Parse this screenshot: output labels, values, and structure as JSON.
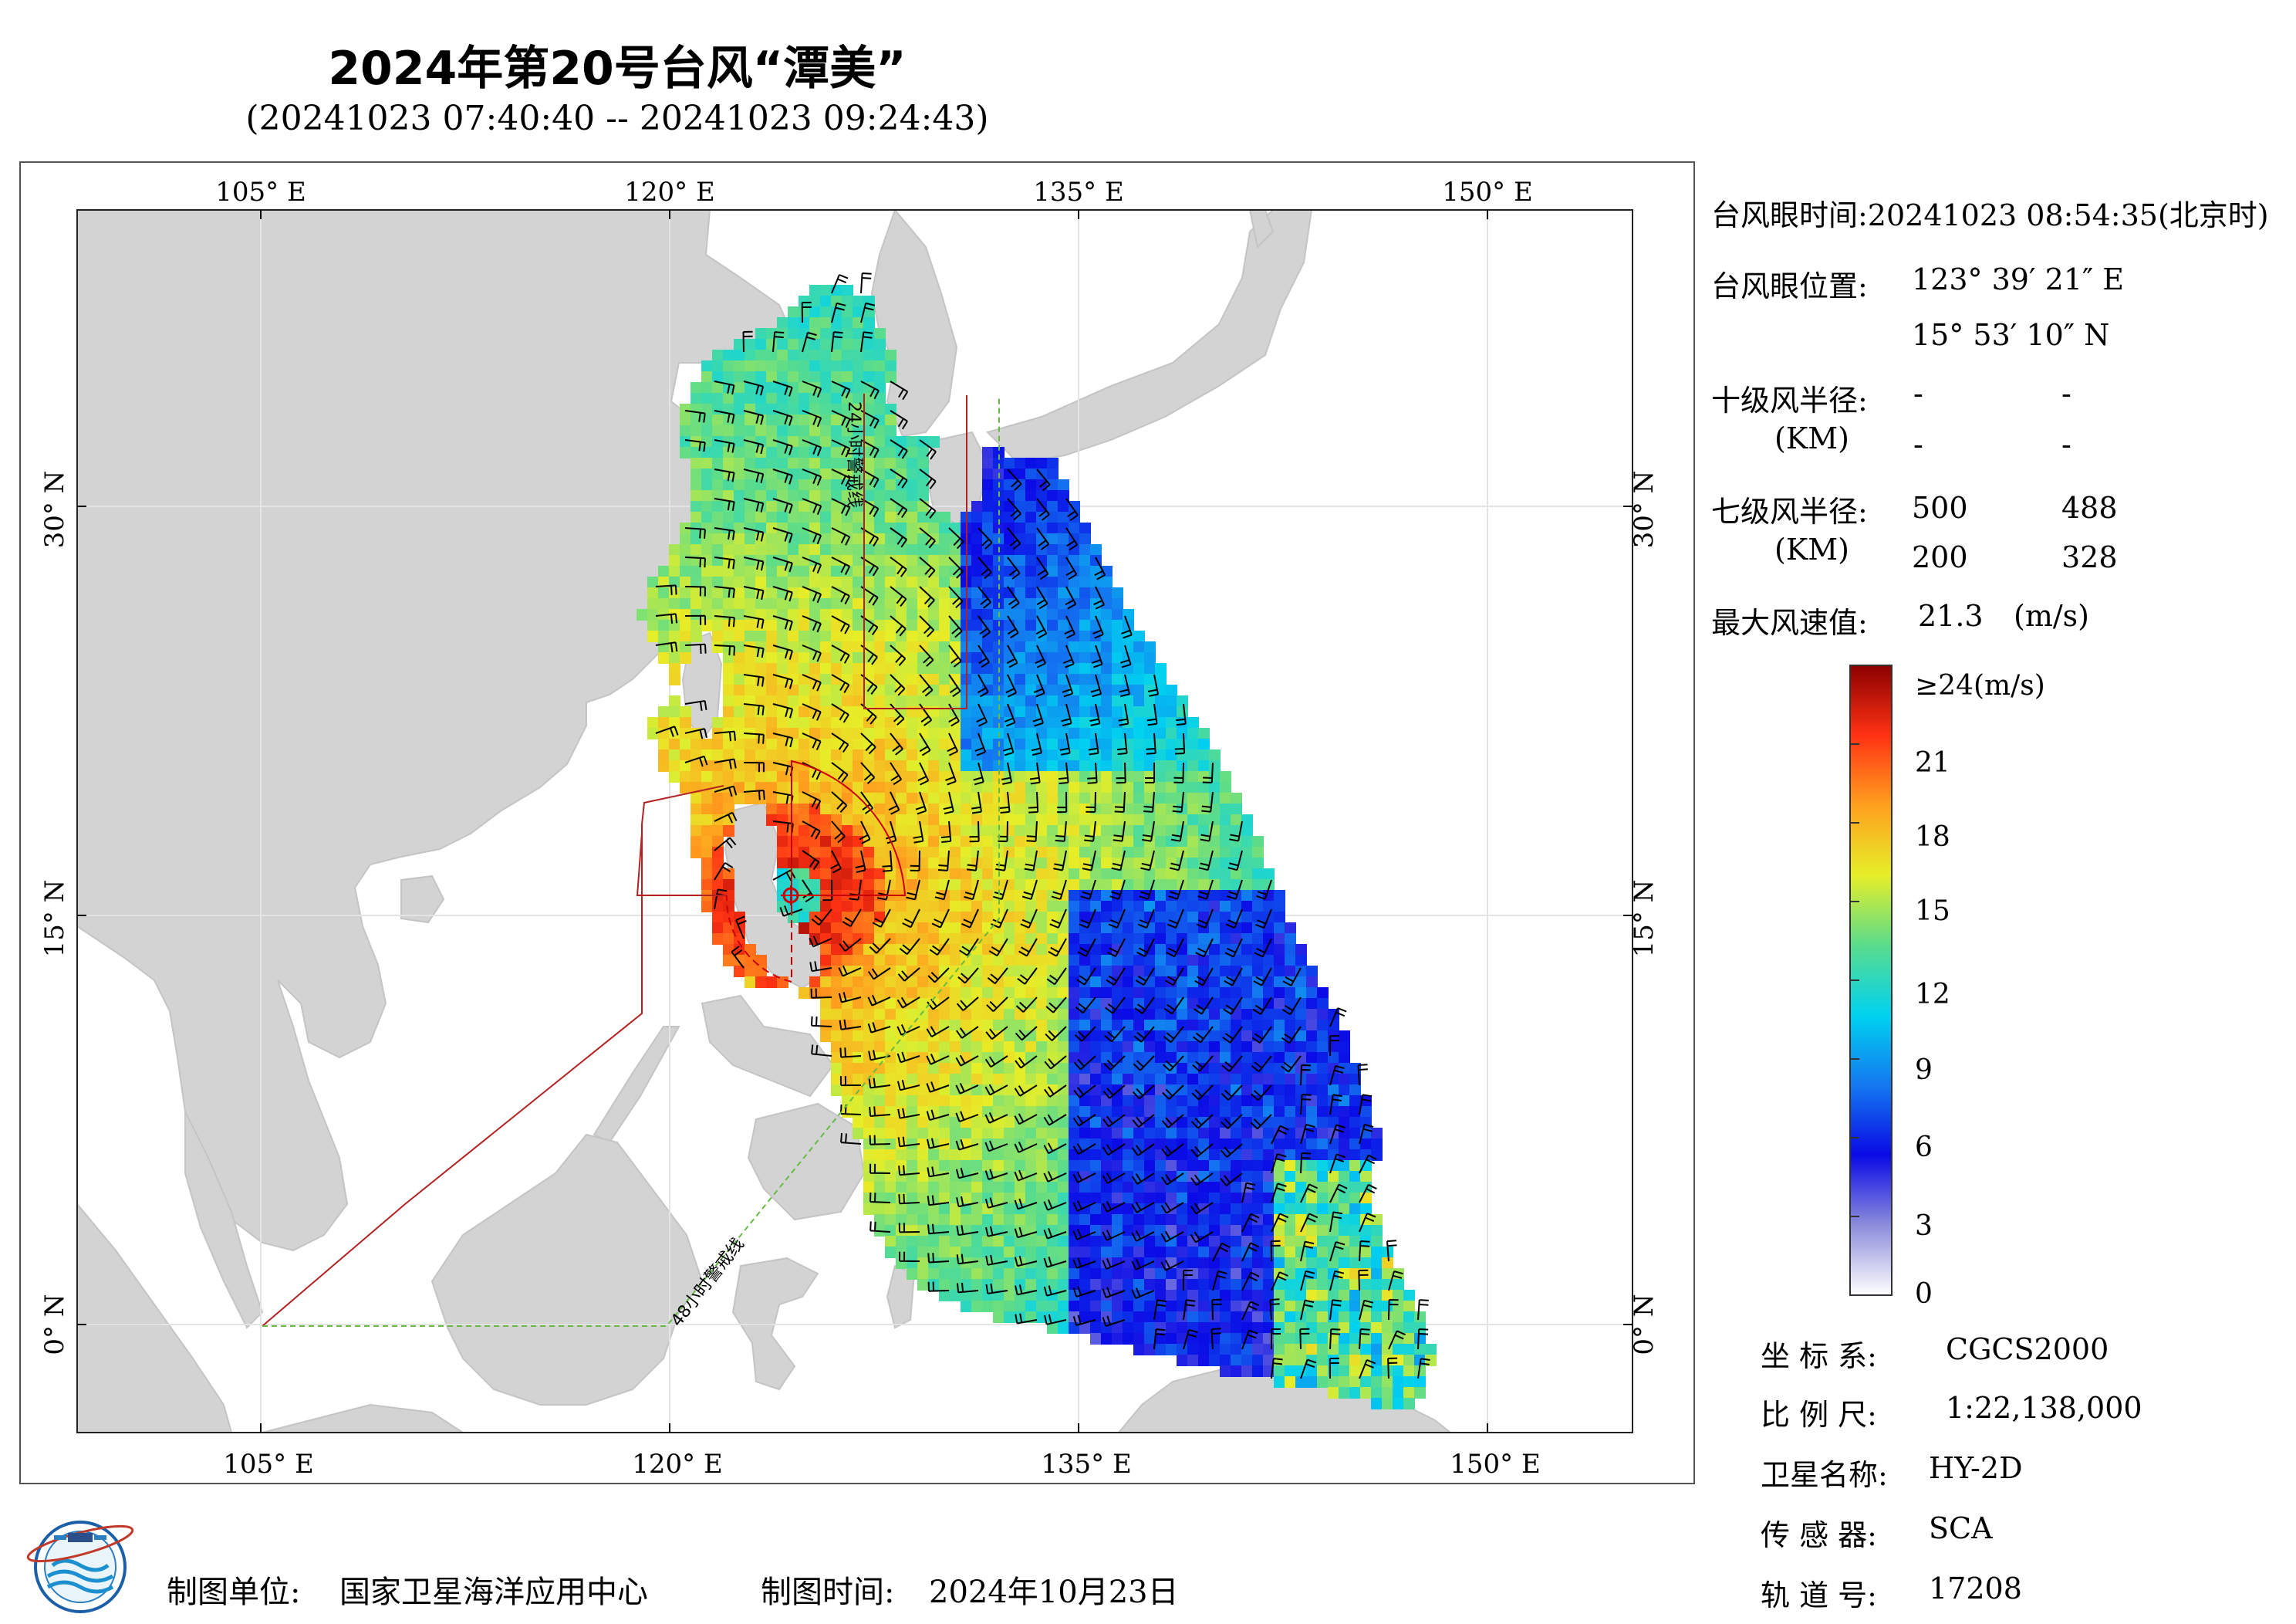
{
  "title": "2024年第20号台风“潭美”",
  "subtitle": "(20241023 07:40:40 -- 20241023 09:24:43)",
  "map": {
    "lon_ticks": [
      "105° E",
      "120° E",
      "135° E",
      "150° E"
    ],
    "lat_ticks": [
      "30° N",
      "15° N",
      "0° N"
    ],
    "warning_24h": "24小时警戒线",
    "warning_48h": "48小时警戒线",
    "colors": {
      "land": "#d3d3d3",
      "sea": "#ffffff",
      "warning_24h": "#b22222",
      "warning_48h": "#66bb44",
      "radius_circle": "#cc0000"
    }
  },
  "info": {
    "eye_time": "台风眼时间:20241023 08:54:35(北京时)",
    "eye_pos_label": "台风眼位置:",
    "eye_lon": "123° 39′ 21″ E",
    "eye_lat": "15° 53′ 10″ N",
    "r10_label": "十级风半径:",
    "r10_unit": "(KM)",
    "r10_values": [
      "-",
      "-",
      "-",
      "-"
    ],
    "r7_label": "七级风半径:",
    "r7_unit": "(KM)",
    "r7_values": [
      "500",
      "488",
      "200",
      "328"
    ],
    "maxwind_label": "最大风速值:",
    "maxwind_value": "21.3",
    "maxwind_unit": "(m/s)"
  },
  "colorbar": {
    "labels": [
      "≥24(m/s)",
      "21",
      "18",
      "15",
      "12",
      "9",
      "6",
      "3",
      "0"
    ],
    "range": [
      0,
      24
    ],
    "stops": [
      "#ffffff",
      "#8c8cdc",
      "#0a0ae6",
      "#1478f0",
      "#00d2f0",
      "#5adc8c",
      "#e6ee28",
      "#ffa01e",
      "#ff3214",
      "#8b0000"
    ]
  },
  "meta": {
    "crs_label": "坐 标 系:",
    "crs_value": "CGCS2000",
    "scale_label": "比 例 尺:",
    "scale_value": "1:22,138,000",
    "sat_label": "卫星名称:",
    "sat_value": "HY-2D",
    "sensor_label": "传 感 器:",
    "sensor_value": "SCA",
    "orbit_label": "轨 道 号:",
    "orbit_value": "17208"
  },
  "footer": {
    "producer_label": "制图单位:",
    "producer_value": "国家卫星海洋应用中心",
    "date_label": "制图时间:",
    "date_value": "2024年10月23日"
  },
  "logo_text": "NATIONAL SATELLITE OCEAN APPLICATION SERVICE"
}
